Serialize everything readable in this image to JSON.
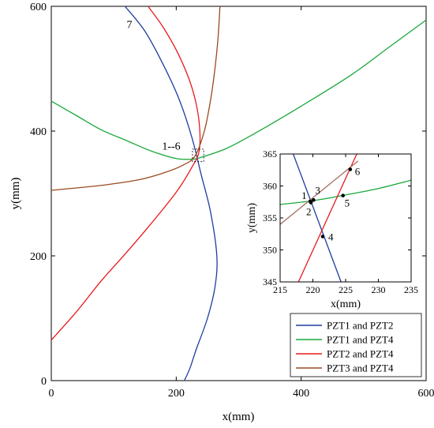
{
  "chart_data": [
    {
      "type": "line",
      "xlabel": "x(mm)",
      "ylabel": "y(mm)",
      "xlim": [
        0,
        600
      ],
      "ylim": [
        0,
        600
      ],
      "xticks": [
        "0",
        "200",
        "400",
        "600"
      ],
      "yticks": [
        "0",
        "200",
        "400",
        "600"
      ],
      "legend_position": "bottom-right",
      "annotations": [
        {
          "text": "7",
          "x": 125,
          "y": 565
        },
        {
          "text": "1--6",
          "x": 192,
          "y": 370
        }
      ],
      "series": [
        {
          "name": "PZT1 and PZT2",
          "color": "#1f3da0",
          "points": [
            [
              118,
              600
            ],
            [
              150,
              560
            ],
            [
              180,
              505
            ],
            [
              205,
              450
            ],
            [
              225,
              390
            ],
            [
              240,
              330
            ],
            [
              255,
              270
            ],
            [
              265,
              200
            ],
            [
              262,
              150
            ],
            [
              250,
              100
            ],
            [
              232,
              50
            ],
            [
              222,
              20
            ],
            [
              213,
              0
            ]
          ]
        },
        {
          "name": "PZT1 and PZT4",
          "color": "#19a83c",
          "points": [
            [
              0,
              448
            ],
            [
              40,
              425
            ],
            [
              80,
              402
            ],
            [
              120,
              385
            ],
            [
              160,
              368
            ],
            [
              200,
              356
            ],
            [
              225,
              355
            ],
            [
              240,
              358
            ],
            [
              280,
              372
            ],
            [
              320,
              393
            ],
            [
              400,
              440
            ],
            [
              480,
              490
            ],
            [
              540,
              534
            ],
            [
              600,
              578
            ]
          ]
        },
        {
          "name": "PZT2 and PZT4",
          "color": "#e8191e",
          "points": [
            [
              0,
              65
            ],
            [
              40,
              110
            ],
            [
              80,
              160
            ],
            [
              120,
              205
            ],
            [
              160,
              252
            ],
            [
              200,
              302
            ],
            [
              225,
              342
            ],
            [
              237,
              370
            ],
            [
              236,
              420
            ],
            [
              225,
              470
            ],
            [
              205,
              520
            ],
            [
              180,
              565
            ],
            [
              155,
              600
            ]
          ]
        },
        {
          "name": "PZT3 and PZT4",
          "color": "#9a4a20",
          "points": [
            [
              0,
              305
            ],
            [
              80,
              313
            ],
            [
              140,
              322
            ],
            [
              180,
              333
            ],
            [
              210,
              345
            ],
            [
              230,
              360
            ],
            [
              245,
              400
            ],
            [
              255,
              450
            ],
            [
              262,
              500
            ],
            [
              267,
              550
            ],
            [
              270,
              600
            ]
          ]
        }
      ]
    },
    {
      "type": "line",
      "xlabel": "x(mm)",
      "ylabel": "y(mm)",
      "xlim": [
        215,
        235
      ],
      "ylim": [
        345,
        365
      ],
      "xticks": [
        "215",
        "220",
        "225",
        "230",
        "235"
      ],
      "yticks": [
        "345",
        "350",
        "355",
        "360",
        "365"
      ],
      "points": [
        {
          "label": "1",
          "x": 219.6,
          "y": 357.6
        },
        {
          "label": "2",
          "x": 219.7,
          "y": 357.4
        },
        {
          "label": "3",
          "x": 220.1,
          "y": 357.8
        },
        {
          "label": "4",
          "x": 221.5,
          "y": 352.1
        },
        {
          "label": "5",
          "x": 224.6,
          "y": 358.5
        },
        {
          "label": "6",
          "x": 225.7,
          "y": 362.6
        }
      ],
      "series": [
        {
          "name": "PZT1 and PZT2",
          "color": "#1f3da0",
          "points": [
            [
              217.0,
              365
            ],
            [
              224.3,
              345
            ]
          ]
        },
        {
          "name": "PZT1 and PZT4",
          "color": "#19a83c",
          "points": [
            [
              215,
              357.1
            ],
            [
              220,
              357.7
            ],
            [
              225,
              358.6
            ],
            [
              230,
              359.6
            ],
            [
              235,
              360.9
            ]
          ]
        },
        {
          "name": "PZT2 and PZT4",
          "color": "#e8191e",
          "points": [
            [
              217.8,
              345
            ],
            [
              226.7,
              365
            ]
          ]
        },
        {
          "name": "PZT3 and PZT4",
          "color": "#a07060",
          "points": [
            [
              215,
              354.0
            ],
            [
              226.9,
              363.9
            ]
          ]
        }
      ]
    }
  ]
}
